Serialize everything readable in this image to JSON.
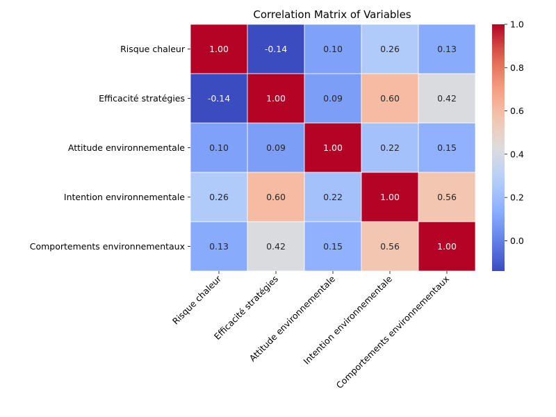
{
  "chart_data": {
    "type": "heatmap",
    "title": "Correlation Matrix of Variables",
    "xlabel": "",
    "ylabel": "",
    "row_labels": [
      "Risque chaleur",
      "Efficacité stratégies",
      "Attitude environnementale",
      "Intention environnementale",
      "Comportements environnementaux"
    ],
    "col_labels": [
      "Risque chaleur",
      "Efficacité stratégies",
      "Attitude environnementale",
      "Intention environnementale",
      "Comportements environnementaux"
    ],
    "values": [
      [
        1.0,
        -0.14,
        0.1,
        0.26,
        0.13
      ],
      [
        -0.14,
        1.0,
        0.09,
        0.6,
        0.42
      ],
      [
        0.1,
        0.09,
        1.0,
        0.22,
        0.15
      ],
      [
        0.26,
        0.6,
        0.22,
        1.0,
        0.56
      ],
      [
        0.13,
        0.42,
        0.15,
        0.56,
        1.0
      ]
    ],
    "value_format": "0.00",
    "colormap": "coolwarm",
    "color_range": [
      -0.14,
      1.0
    ],
    "colorbar_ticks": [
      0.0,
      0.2,
      0.4,
      0.6,
      0.8,
      1.0
    ],
    "colorbar_tick_labels": [
      "0.0",
      "0.2",
      "0.4",
      "0.6",
      "0.8",
      "1.0"
    ],
    "colorbar_placement": "right",
    "cell_border_color": "#ffffff"
  }
}
